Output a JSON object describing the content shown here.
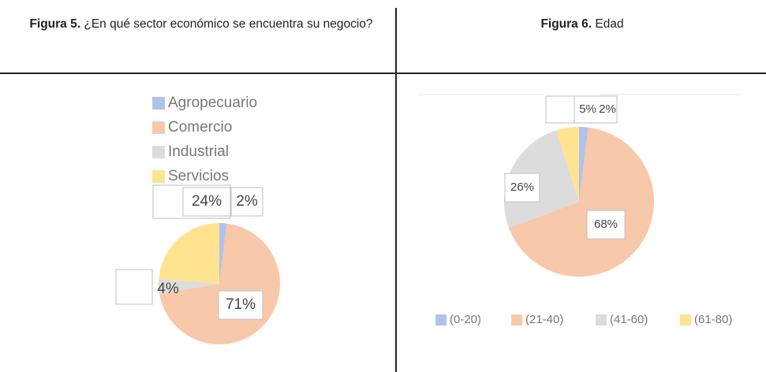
{
  "chart_data": [
    {
      "type": "pie",
      "figure": "Figura 5.",
      "title": "¿En qué sector económico se encuentra su negocio?",
      "categories": [
        "Agropecuario",
        "Comercio",
        "Industrial",
        "Servicios"
      ],
      "values": [
        2,
        71,
        4,
        24
      ],
      "value_labels": [
        "2%",
        "71%",
        "4%",
        "24%"
      ],
      "colors": [
        "#aec3ea",
        "#f8c8aa",
        "#dcdcdc",
        "#ffe391"
      ],
      "legend": "top"
    },
    {
      "type": "pie",
      "figure": "Figura 6.",
      "title": "Edad",
      "categories": [
        "(0-20)",
        "(21-40)",
        "(41-60)",
        "(61-80)"
      ],
      "values": [
        2,
        68,
        26,
        5
      ],
      "value_labels": [
        "2%",
        "68%",
        "26%",
        "5%"
      ],
      "colors": [
        "#aec3ea",
        "#f8c8aa",
        "#dcdcdc",
        "#ffe391"
      ],
      "legend": "bottom"
    }
  ]
}
